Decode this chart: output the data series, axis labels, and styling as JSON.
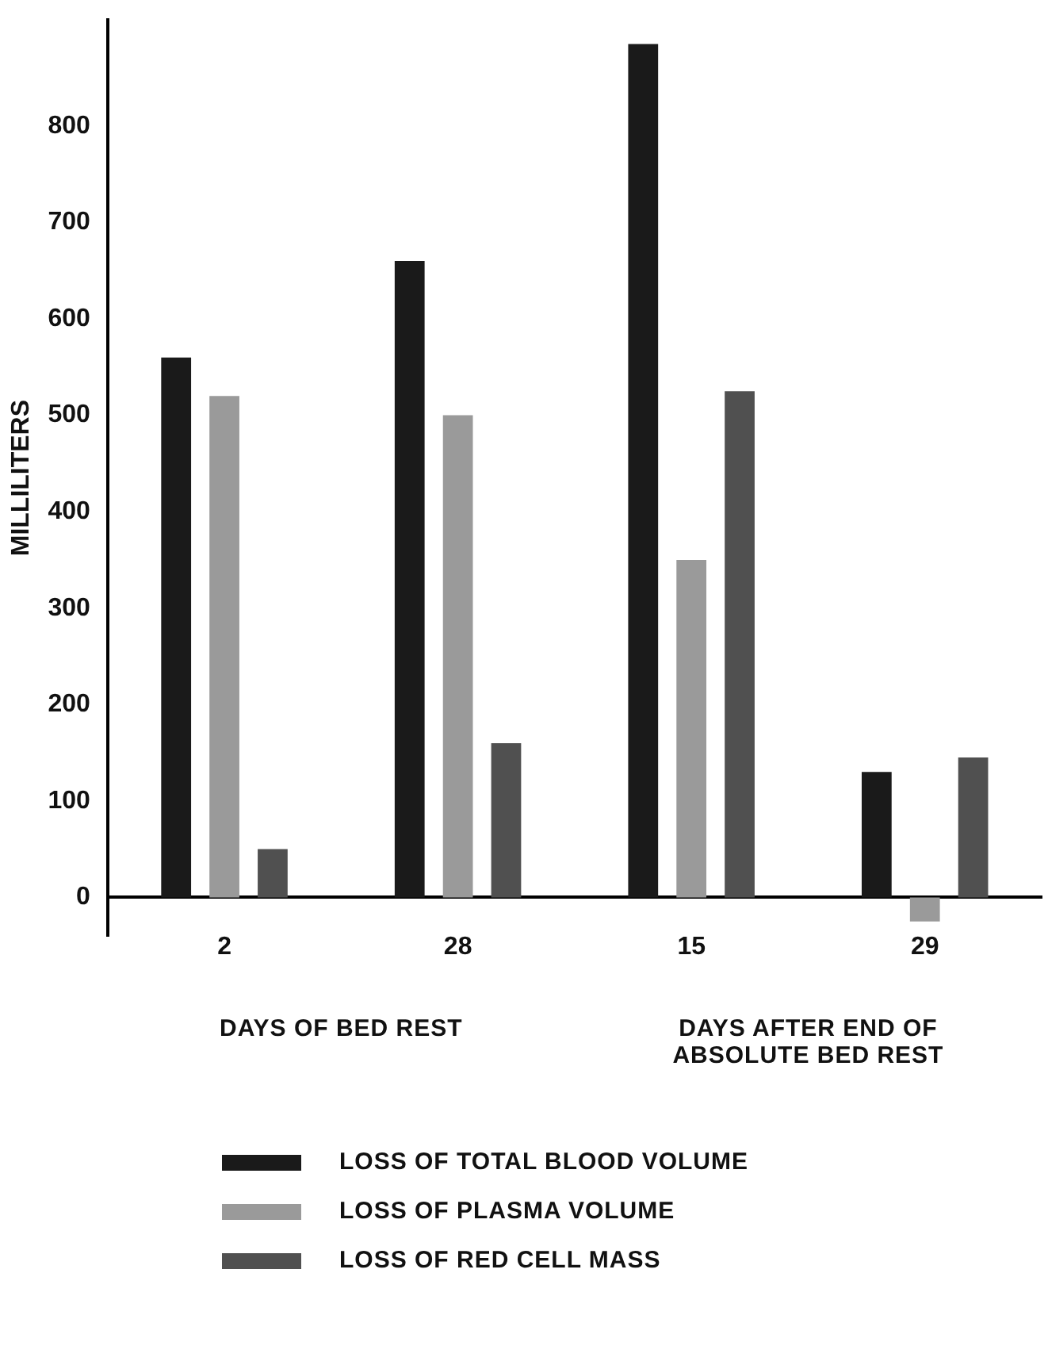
{
  "chart_data": {
    "type": "bar",
    "ylabel": "MILLILITERS",
    "categories": [
      "2",
      "28",
      "15",
      "29"
    ],
    "series": [
      {
        "name": "LOSS OF TOTAL BLOOD VOLUME",
        "color": "#1a1a1a",
        "values": [
          560,
          660,
          885,
          130
        ]
      },
      {
        "name": "LOSS OF PLASMA VOLUME",
        "color": "#9a9a9a",
        "values": [
          520,
          500,
          350,
          -25
        ]
      },
      {
        "name": "LOSS OF RED CELL MASS",
        "color": "#505050",
        "values": [
          50,
          160,
          525,
          145
        ]
      }
    ],
    "ylim": [
      -40,
      910
    ],
    "yticks": [
      0,
      100,
      200,
      300,
      400,
      500,
      600,
      700,
      800
    ],
    "grid": false,
    "legend": "bottom",
    "annotations": [
      "DAYS OF BED REST",
      "DAYS AFTER END OF ABSOLUTE BED REST"
    ]
  }
}
